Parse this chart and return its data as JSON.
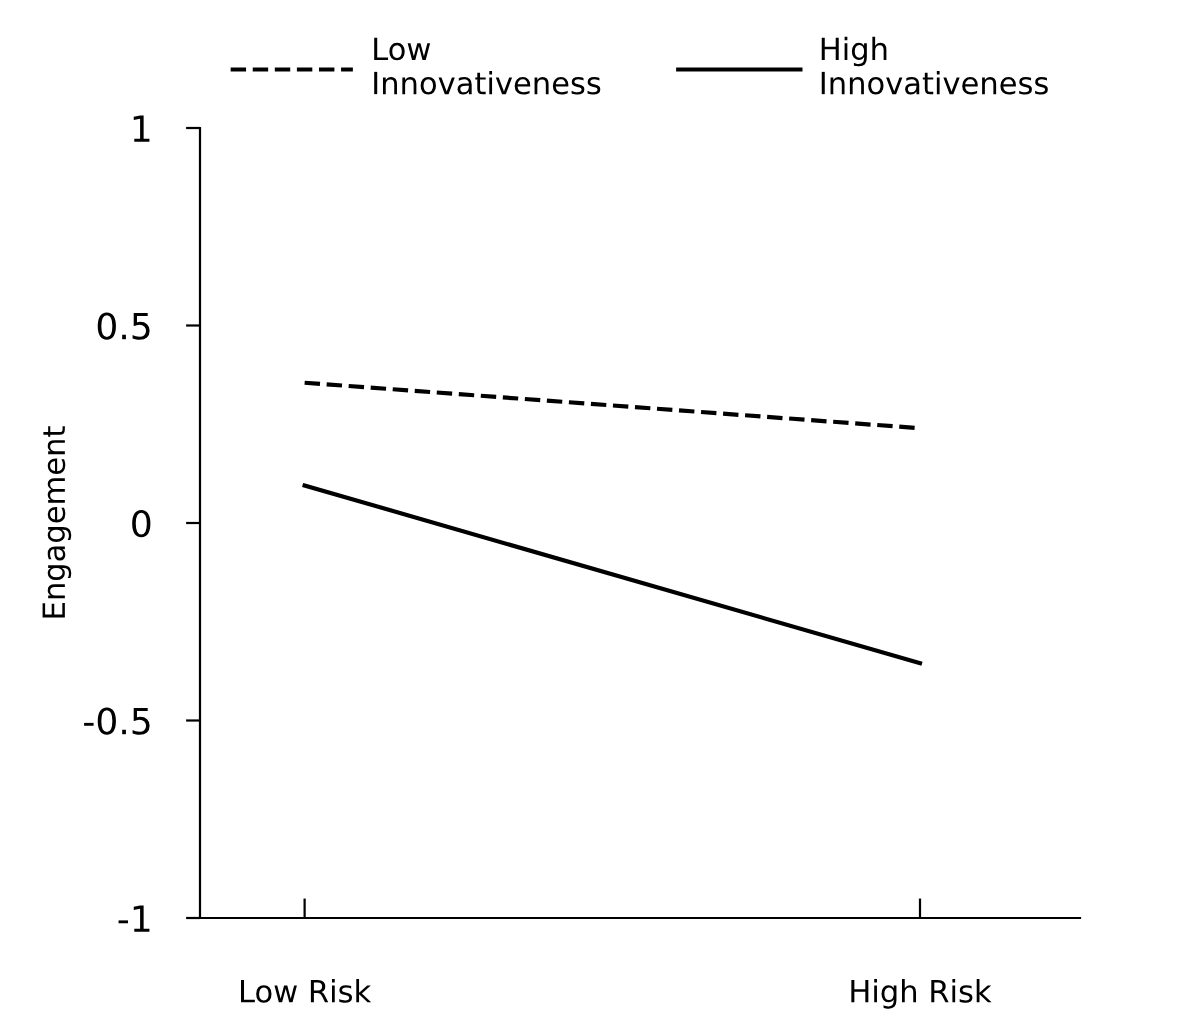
{
  "chart_data": {
    "type": "line",
    "ylabel": "Engagement",
    "categories": [
      "Low Risk",
      "High Risk"
    ],
    "series": [
      {
        "name": "Low\nInnovativeness",
        "color": "#000000",
        "line_style": "dashed",
        "values": [
          0.355,
          0.24
        ]
      },
      {
        "name": "High\nInnovativeness",
        "color": "#000000",
        "line_style": "solid",
        "values": [
          0.095,
          -0.355
        ]
      }
    ],
    "ylim": [
      -1,
      1
    ],
    "yticks": [
      {
        "value": 1,
        "label": "1"
      },
      {
        "value": 0.5,
        "label": "0.5"
      },
      {
        "value": 0,
        "label": "0"
      },
      {
        "value": -0.5,
        "label": "-0.5"
      },
      {
        "value": -1,
        "label": "-1"
      }
    ],
    "legend": "top",
    "grid": false,
    "marker": "none"
  }
}
